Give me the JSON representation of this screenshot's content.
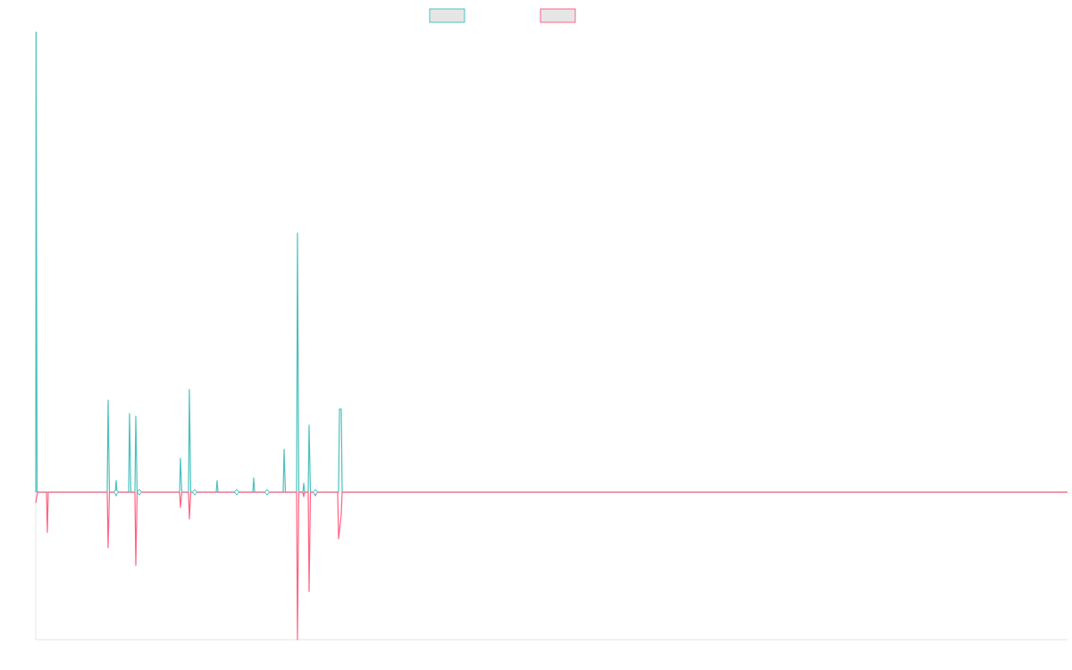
{
  "colors": {
    "series_a": "#4bc0c0",
    "series_b": "#ff6384",
    "axis": "#e5e5e5",
    "legend_fill": "#e6e6e6"
  },
  "chart_data": {
    "type": "line",
    "title": "",
    "xlabel": "",
    "ylabel": "",
    "grid": false,
    "legend_position": "top",
    "y_range": [
      -165,
      515
    ],
    "x_range": [
      0,
      1155
    ],
    "series": [
      {
        "name": "",
        "color": "#4bc0c0",
        "points": [
          [
            0,
            0
          ],
          [
            0.4,
            515
          ],
          [
            1.5,
            0
          ],
          [
            80,
            0
          ],
          [
            81,
            103
          ],
          [
            82.5,
            0
          ],
          [
            89,
            0
          ],
          [
            90,
            13
          ],
          [
            91,
            0
          ],
          [
            104,
            0
          ],
          [
            105,
            88
          ],
          [
            106.5,
            0
          ],
          [
            111,
            0
          ],
          [
            112,
            85
          ],
          [
            113.5,
            0
          ],
          [
            161,
            0
          ],
          [
            162,
            38
          ],
          [
            163.5,
            0
          ],
          [
            171,
            0
          ],
          [
            172,
            115
          ],
          [
            173.5,
            0
          ],
          [
            202,
            0
          ],
          [
            203,
            13
          ],
          [
            204,
            0
          ],
          [
            243,
            0
          ],
          [
            244,
            16
          ],
          [
            245,
            0
          ],
          [
            277,
            0
          ],
          [
            278,
            48
          ],
          [
            279.5,
            0
          ],
          [
            292,
            0
          ],
          [
            293,
            290
          ],
          [
            294.5,
            0
          ],
          [
            299,
            0
          ],
          [
            300,
            10
          ],
          [
            301,
            0
          ],
          [
            305,
            0
          ],
          [
            306,
            75
          ],
          [
            307.5,
            0
          ],
          [
            339,
            0
          ],
          [
            340,
            93
          ],
          [
            342,
            93
          ],
          [
            343,
            0
          ],
          [
            1155,
            0
          ]
        ]
      },
      {
        "name": "",
        "color": "#ff6384",
        "points": [
          [
            0,
            -12
          ],
          [
            2,
            0
          ],
          [
            12,
            0
          ],
          [
            13,
            -45
          ],
          [
            14,
            0
          ],
          [
            80,
            0
          ],
          [
            81,
            -62
          ],
          [
            82.5,
            0
          ],
          [
            89,
            0
          ],
          [
            90,
            -4
          ],
          [
            91,
            0
          ],
          [
            111,
            0
          ],
          [
            112,
            -82
          ],
          [
            113.5,
            0
          ],
          [
            161,
            0
          ],
          [
            162,
            -17
          ],
          [
            163.5,
            0
          ],
          [
            171,
            0
          ],
          [
            172,
            -30
          ],
          [
            173.5,
            0
          ],
          [
            292,
            0
          ],
          [
            293,
            -165
          ],
          [
            294.5,
            0
          ],
          [
            299,
            0
          ],
          [
            300,
            -5
          ],
          [
            301,
            0
          ],
          [
            305,
            0
          ],
          [
            306,
            -111
          ],
          [
            307.5,
            0
          ],
          [
            311,
            0
          ],
          [
            313,
            -4
          ],
          [
            315,
            0
          ],
          [
            338,
            0
          ],
          [
            339,
            -52
          ],
          [
            342,
            -25
          ],
          [
            343,
            0
          ],
          [
            1155,
            0
          ]
        ]
      }
    ],
    "markers": [
      {
        "x": 90,
        "y": 0
      },
      {
        "x": 116,
        "y": 0
      },
      {
        "x": 178,
        "y": 0
      },
      {
        "x": 225,
        "y": 0
      },
      {
        "x": 259,
        "y": 0
      },
      {
        "x": 313,
        "y": 0
      }
    ]
  }
}
